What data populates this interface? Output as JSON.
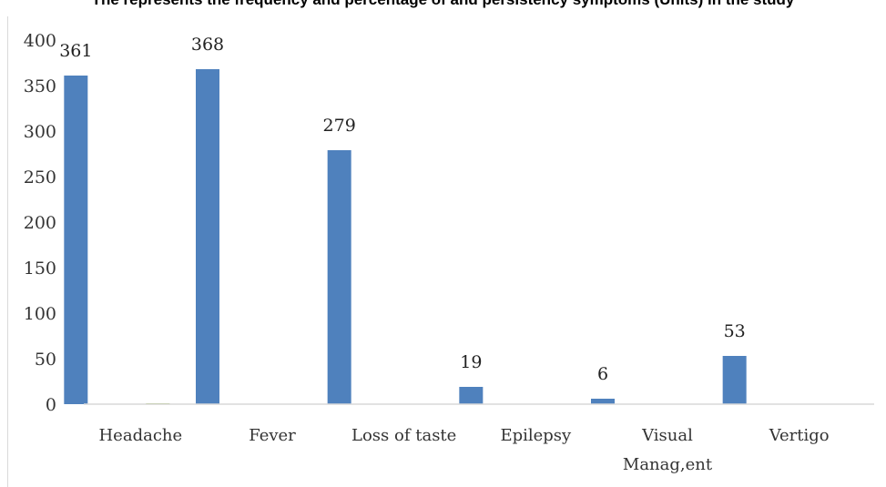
{
  "page_title": "The represents the frequency and percentage of and persistency symptoms (Units) in the study",
  "chart_data": {
    "type": "bar",
    "title": "",
    "xlabel": "",
    "ylabel": "",
    "ylim": [
      0,
      400
    ],
    "yticks": [
      0,
      50,
      100,
      150,
      200,
      250,
      300,
      350,
      400
    ],
    "grid": false,
    "legend": "none",
    "categories": [
      "Headache",
      "Fever",
      "Loss of taste",
      "Epilepsy",
      "Visual Manag,ent",
      "Vertigo"
    ],
    "category_lines": [
      [
        "Headache"
      ],
      [
        "Fever"
      ],
      [
        "Loss of taste"
      ],
      [
        "Epilepsy"
      ],
      [
        "Visual",
        "Manag,ent"
      ],
      [
        "Vertigo"
      ]
    ],
    "series": [
      {
        "values": [
          361,
          368,
          279,
          19,
          6,
          53
        ],
        "color": "#4f81bd",
        "data_labels": true
      },
      {
        "values": [
          1,
          0,
          0,
          0,
          0,
          0
        ],
        "color": "#9bbb59",
        "data_labels": false
      }
    ]
  }
}
